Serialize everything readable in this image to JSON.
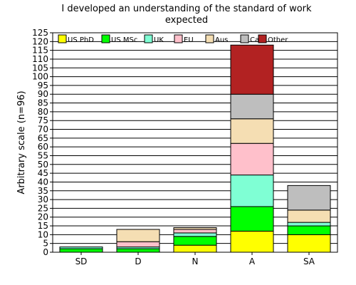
{
  "chart_data": {
    "type": "bar",
    "stacked": true,
    "title_lines": [
      "I developed an understanding of the standard of work",
      "expected"
    ],
    "ylabel": "Arbitrary scale (n=96)",
    "xlabel": "",
    "ylim": [
      0,
      125
    ],
    "ytick_step": 5,
    "grid": true,
    "legend_position": "top",
    "categories": [
      "SD",
      "D",
      "N",
      "A",
      "SA"
    ],
    "series": [
      {
        "name": "US PhD",
        "color": "#ffff00",
        "values": [
          0,
          0,
          4,
          12,
          10
        ]
      },
      {
        "name": "US MSc",
        "color": "#00ff00",
        "values": [
          2,
          2,
          5,
          14,
          5
        ]
      },
      {
        "name": "UK",
        "color": "#7fffd4",
        "values": [
          1,
          1,
          2,
          18,
          2
        ]
      },
      {
        "name": "EU",
        "color": "#ffc0cb",
        "values": [
          0,
          3,
          2,
          18,
          0
        ]
      },
      {
        "name": "Aus",
        "color": "#f5deb3",
        "values": [
          0,
          7,
          1,
          14,
          7
        ]
      },
      {
        "name": "Ca",
        "color": "#bebebe",
        "values": [
          0,
          0,
          0,
          14,
          14
        ]
      },
      {
        "name": "Other",
        "color": "#b22222",
        "values": [
          0,
          0,
          0,
          28,
          0
        ]
      }
    ]
  }
}
